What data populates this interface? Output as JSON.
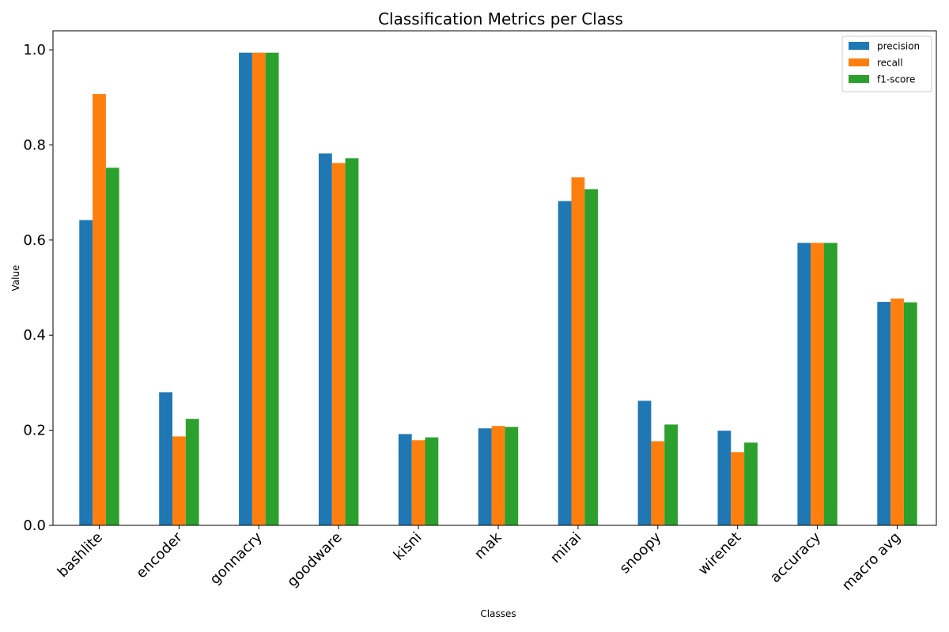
{
  "chart_data": {
    "type": "bar",
    "title": "Classification Metrics per Class",
    "xlabel": "Classes",
    "ylabel": "Value",
    "categories": [
      "bashlite",
      "encoder",
      "gonnacry",
      "goodware",
      "kisni",
      "mak",
      "mirai",
      "snoopy",
      "wirenet",
      "accuracy",
      "macro avg"
    ],
    "series": [
      {
        "name": "precision",
        "color": "#1f77b4",
        "values": [
          0.642,
          0.28,
          0.994,
          0.782,
          0.192,
          0.204,
          0.682,
          0.262,
          0.199,
          0.594,
          0.47
        ]
      },
      {
        "name": "recall",
        "color": "#ff7f0e",
        "values": [
          0.907,
          0.187,
          0.994,
          0.762,
          0.179,
          0.209,
          0.732,
          0.177,
          0.154,
          0.594,
          0.477
        ]
      },
      {
        "name": "f1-score",
        "color": "#2ca02c",
        "values": [
          0.752,
          0.224,
          0.994,
          0.772,
          0.185,
          0.207,
          0.707,
          0.212,
          0.174,
          0.594,
          0.469
        ]
      }
    ],
    "ylim": [
      0,
      1.04
    ],
    "yticks": [
      "0.0",
      "0.2",
      "0.4",
      "0.6",
      "0.8",
      "1.0"
    ],
    "grid": false,
    "legend_position": "top-right"
  }
}
